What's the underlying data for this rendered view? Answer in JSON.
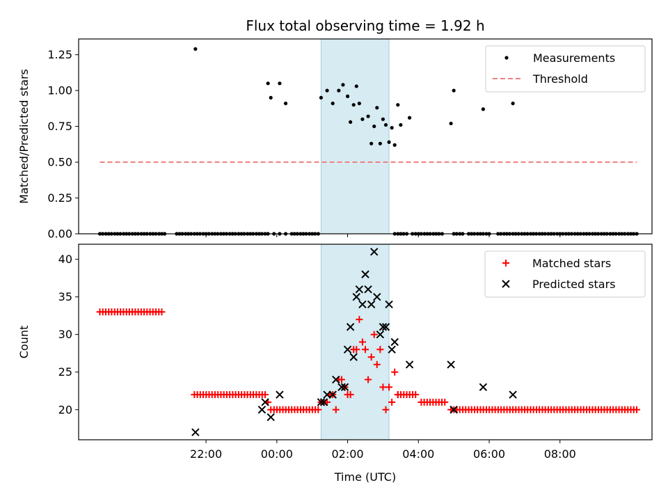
{
  "figure": {
    "title": "Flux total observing time = 1.92 h",
    "xlabel": "Time (UTC)"
  },
  "chart_data": [
    {
      "type": "scatter",
      "title": "Flux total observing time = 1.92 h",
      "xlabel": "",
      "ylabel": "Matched/Predicted stars",
      "x_unit": "hours since 00:00 UTC (negative = previous day)",
      "xlim": [
        -5.6,
        10.6
      ],
      "ylim": [
        0,
        1.36
      ],
      "yticks": [
        "0.00",
        "0.25",
        "0.50",
        "0.75",
        "1.00",
        "1.25"
      ],
      "shaded_span": [
        1.25,
        3.17
      ],
      "legend": "top-right",
      "series": [
        {
          "name": "Measurements",
          "color": "#000000",
          "marker": "dot",
          "points": [
            [
              -5.0,
              0
            ],
            [
              -4.92,
              0
            ],
            [
              -4.83,
              0
            ],
            [
              -4.75,
              0
            ],
            [
              -4.67,
              0
            ],
            [
              -4.58,
              0
            ],
            [
              -4.5,
              0
            ],
            [
              -4.42,
              0
            ],
            [
              -4.33,
              0
            ],
            [
              -4.25,
              0
            ],
            [
              -4.17,
              0
            ],
            [
              -4.08,
              0
            ],
            [
              -4.0,
              0
            ],
            [
              -3.92,
              0
            ],
            [
              -3.83,
              0
            ],
            [
              -3.75,
              0
            ],
            [
              -3.67,
              0
            ],
            [
              -3.58,
              0
            ],
            [
              -3.5,
              0
            ],
            [
              -3.42,
              0
            ],
            [
              -3.33,
              0
            ],
            [
              -3.25,
              0
            ],
            [
              -3.17,
              0
            ],
            [
              -2.83,
              0
            ],
            [
              -2.75,
              0
            ],
            [
              -2.67,
              0
            ],
            [
              -2.58,
              0
            ],
            [
              -2.5,
              0
            ],
            [
              -2.42,
              0
            ],
            [
              -2.33,
              0
            ],
            [
              -2.25,
              0
            ],
            [
              -2.17,
              0
            ],
            [
              -2.08,
              0
            ],
            [
              -2.0,
              0
            ],
            [
              -1.92,
              0
            ],
            [
              -1.83,
              0
            ],
            [
              -1.75,
              0
            ],
            [
              -1.67,
              0
            ],
            [
              -1.58,
              0
            ],
            [
              -1.5,
              0
            ],
            [
              -1.42,
              0
            ],
            [
              -1.33,
              0
            ],
            [
              -1.25,
              0
            ],
            [
              -1.17,
              0
            ],
            [
              -1.08,
              0
            ],
            [
              -1.0,
              0
            ],
            [
              -0.92,
              0
            ],
            [
              -0.83,
              0
            ],
            [
              -0.75,
              0
            ],
            [
              -0.67,
              0
            ],
            [
              -0.58,
              0
            ],
            [
              -0.5,
              0
            ],
            [
              -0.42,
              0
            ],
            [
              -0.33,
              0
            ],
            [
              -0.25,
              0
            ],
            [
              -0.08,
              0
            ],
            [
              0.08,
              0
            ],
            [
              0.25,
              0
            ],
            [
              0.42,
              0
            ],
            [
              0.5,
              0
            ],
            [
              0.58,
              0
            ],
            [
              0.67,
              0
            ],
            [
              0.75,
              0
            ],
            [
              0.83,
              0
            ],
            [
              0.92,
              0
            ],
            [
              1.0,
              0
            ],
            [
              1.08,
              0
            ],
            [
              1.17,
              0
            ],
            [
              3.33,
              0
            ],
            [
              3.42,
              0
            ],
            [
              3.5,
              0
            ],
            [
              3.58,
              0
            ],
            [
              3.67,
              0
            ],
            [
              3.83,
              0
            ],
            [
              3.92,
              0
            ],
            [
              4.0,
              0
            ],
            [
              4.08,
              0
            ],
            [
              4.17,
              0
            ],
            [
              4.25,
              0
            ],
            [
              4.33,
              0
            ],
            [
              4.42,
              0
            ],
            [
              4.5,
              0
            ],
            [
              4.58,
              0
            ],
            [
              4.67,
              0
            ],
            [
              5.0,
              0
            ],
            [
              5.08,
              0
            ],
            [
              5.17,
              0
            ],
            [
              5.25,
              0
            ],
            [
              5.42,
              0
            ],
            [
              5.5,
              0
            ],
            [
              5.58,
              0
            ],
            [
              5.67,
              0
            ],
            [
              5.75,
              0
            ],
            [
              5.83,
              0
            ],
            [
              5.92,
              0
            ],
            [
              6.0,
              0
            ],
            [
              6.25,
              0
            ],
            [
              6.33,
              0
            ],
            [
              6.42,
              0
            ],
            [
              6.5,
              0
            ],
            [
              6.58,
              0
            ],
            [
              6.67,
              0
            ],
            [
              6.75,
              0
            ],
            [
              6.83,
              0
            ],
            [
              6.92,
              0
            ],
            [
              7.0,
              0
            ],
            [
              7.08,
              0
            ],
            [
              7.17,
              0
            ],
            [
              7.25,
              0
            ],
            [
              7.33,
              0
            ],
            [
              7.42,
              0
            ],
            [
              7.5,
              0
            ],
            [
              7.58,
              0
            ],
            [
              7.67,
              0
            ],
            [
              7.75,
              0
            ],
            [
              7.83,
              0
            ],
            [
              7.92,
              0
            ],
            [
              8.0,
              0
            ],
            [
              8.08,
              0
            ],
            [
              8.17,
              0
            ],
            [
              8.25,
              0
            ],
            [
              8.33,
              0
            ],
            [
              8.42,
              0
            ],
            [
              8.5,
              0
            ],
            [
              8.58,
              0
            ],
            [
              8.67,
              0
            ],
            [
              8.75,
              0
            ],
            [
              8.83,
              0
            ],
            [
              8.92,
              0
            ],
            [
              9.0,
              0
            ],
            [
              9.08,
              0
            ],
            [
              9.17,
              0
            ],
            [
              9.25,
              0
            ],
            [
              9.33,
              0
            ],
            [
              9.42,
              0
            ],
            [
              9.5,
              0
            ],
            [
              9.58,
              0
            ],
            [
              9.67,
              0
            ],
            [
              9.75,
              0
            ],
            [
              9.83,
              0
            ],
            [
              9.92,
              0
            ],
            [
              10.0,
              0
            ],
            [
              10.08,
              0
            ],
            [
              10.17,
              0
            ],
            [
              -2.3,
              1.29
            ],
            [
              -0.25,
              1.05
            ],
            [
              -0.17,
              0.95
            ],
            [
              0.08,
              1.05
            ],
            [
              0.25,
              0.91
            ],
            [
              1.25,
              0.95
            ],
            [
              1.42,
              1.0
            ],
            [
              1.58,
              0.91
            ],
            [
              1.75,
              1.0
            ],
            [
              1.87,
              1.04
            ],
            [
              2.0,
              0.96
            ],
            [
              2.08,
              0.78
            ],
            [
              2.17,
              0.9
            ],
            [
              2.25,
              1.03
            ],
            [
              2.33,
              0.91
            ],
            [
              2.42,
              0.8
            ],
            [
              2.58,
              0.82
            ],
            [
              2.67,
              0.63
            ],
            [
              2.75,
              0.75
            ],
            [
              2.83,
              0.88
            ],
            [
              2.92,
              0.63
            ],
            [
              3.0,
              0.8
            ],
            [
              3.08,
              0.76
            ],
            [
              3.17,
              0.64
            ],
            [
              3.25,
              0.74
            ],
            [
              3.33,
              0.62
            ],
            [
              3.42,
              0.9
            ],
            [
              3.5,
              0.76
            ],
            [
              3.75,
              0.81
            ],
            [
              4.92,
              0.77
            ],
            [
              5.0,
              1.0
            ],
            [
              5.83,
              0.87
            ],
            [
              6.67,
              0.91
            ]
          ]
        },
        {
          "name": "Threshold",
          "color": "#f08080",
          "style": "dashed",
          "points": [
            [
              -5.0,
              0.5
            ],
            [
              10.17,
              0.5
            ]
          ]
        }
      ]
    },
    {
      "type": "scatter",
      "title": "",
      "xlabel": "Time (UTC)",
      "ylabel": "Count",
      "x_unit": "hours since 00:00 UTC (negative = previous day)",
      "xlim": [
        -5.6,
        10.6
      ],
      "ylim": [
        16,
        42
      ],
      "yticks": [
        "20",
        "25",
        "30",
        "35",
        "40"
      ],
      "xticks": [
        {
          "value": -2,
          "label": "22:00"
        },
        {
          "value": 0,
          "label": "00:00"
        },
        {
          "value": 2,
          "label": "02:00"
        },
        {
          "value": 4,
          "label": "04:00"
        },
        {
          "value": 6,
          "label": "06:00"
        },
        {
          "value": 8,
          "label": "08:00"
        }
      ],
      "shaded_span": [
        1.25,
        3.17
      ],
      "legend": "top-right",
      "series": [
        {
          "name": "Matched stars",
          "color": "#ff0000",
          "marker": "plus",
          "runs": [
            {
              "start": -5.0,
              "end": -3.17,
              "step": 0.0833,
              "y": 33
            },
            {
              "start": -2.33,
              "end": -0.25,
              "step": 0.0833,
              "y": 22
            },
            {
              "start": -0.08,
              "end": 1.17,
              "step": 0.0833,
              "y": 20
            },
            {
              "start": 3.42,
              "end": 4.0,
              "step": 0.0833,
              "y": 22
            },
            {
              "start": 4.08,
              "end": 4.75,
              "step": 0.0833,
              "y": 21
            },
            {
              "start": 4.92,
              "end": 10.17,
              "step": 0.0833,
              "y": 20
            }
          ],
          "points": [
            [
              -0.25,
              21
            ],
            [
              -0.17,
              20
            ],
            [
              1.25,
              21
            ],
            [
              1.33,
              21
            ],
            [
              1.42,
              21
            ],
            [
              1.5,
              22
            ],
            [
              1.58,
              22
            ],
            [
              1.67,
              20
            ],
            [
              1.75,
              24
            ],
            [
              1.83,
              24
            ],
            [
              1.92,
              23
            ],
            [
              2.0,
              22
            ],
            [
              2.08,
              22
            ],
            [
              2.17,
              28
            ],
            [
              2.25,
              28
            ],
            [
              2.33,
              32
            ],
            [
              2.42,
              29
            ],
            [
              2.5,
              28
            ],
            [
              2.58,
              24
            ],
            [
              2.67,
              27
            ],
            [
              2.75,
              30
            ],
            [
              2.83,
              26
            ],
            [
              2.92,
              28
            ],
            [
              3.0,
              23
            ],
            [
              3.08,
              20
            ],
            [
              3.17,
              23
            ],
            [
              3.25,
              21
            ],
            [
              3.33,
              25
            ],
            [
              3.42,
              22
            ]
          ]
        },
        {
          "name": "Predicted stars",
          "color": "#000000",
          "marker": "x",
          "points": [
            [
              -2.3,
              17
            ],
            [
              -0.42,
              20
            ],
            [
              -0.33,
              21
            ],
            [
              -0.17,
              19
            ],
            [
              0.08,
              22
            ],
            [
              1.25,
              21
            ],
            [
              1.33,
              21
            ],
            [
              1.42,
              22
            ],
            [
              1.58,
              22
            ],
            [
              1.67,
              24
            ],
            [
              1.83,
              23
            ],
            [
              1.92,
              23
            ],
            [
              2.0,
              28
            ],
            [
              2.08,
              31
            ],
            [
              2.17,
              27
            ],
            [
              2.25,
              35
            ],
            [
              2.33,
              36
            ],
            [
              2.42,
              34
            ],
            [
              2.5,
              38
            ],
            [
              2.58,
              36
            ],
            [
              2.67,
              34
            ],
            [
              2.75,
              41
            ],
            [
              2.83,
              35
            ],
            [
              2.92,
              30
            ],
            [
              3.0,
              31
            ],
            [
              3.08,
              31
            ],
            [
              3.17,
              34
            ],
            [
              3.25,
              28
            ],
            [
              3.33,
              29
            ],
            [
              3.75,
              26
            ],
            [
              4.92,
              26
            ],
            [
              5.0,
              20
            ],
            [
              5.83,
              23
            ],
            [
              6.67,
              22
            ]
          ]
        }
      ]
    }
  ]
}
